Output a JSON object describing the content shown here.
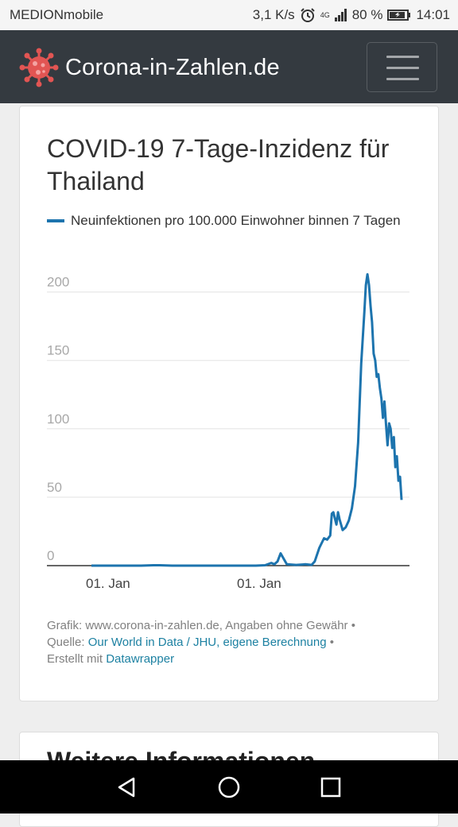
{
  "status_bar": {
    "carrier": "MEDIONmobile",
    "speed": "3,1 K/s",
    "network": "4G",
    "battery": "80 %",
    "time": "14:01"
  },
  "navbar": {
    "brand": "Corona-in-Zahlen.de",
    "logo_icon": "virus-icon",
    "menu_icon": "hamburger-icon"
  },
  "chart": {
    "title": "COVID-19 7-Tage-Inzidenz für Thailand",
    "legend_label": "Neuinfektionen pro 100.000 Einwohner binnen 7 Tagen",
    "line_color": "#1d74ae"
  },
  "chart_data": {
    "type": "line",
    "title": "COVID-19 7-Tage-Inzidenz für Thailand",
    "xlabel": "",
    "ylabel": "",
    "ylim": [
      0,
      200
    ],
    "yticks": [
      "200",
      "150",
      "100",
      "50",
      "0"
    ],
    "xticks": [
      "01. Jan",
      "01. Jan"
    ],
    "grid": true,
    "legend": "top",
    "series": [
      {
        "name": "Neuinfektionen pro 100.000 Einwohner binnen 7 Tagen",
        "points": [
          [
            0.0,
            0
          ],
          [
            0.16,
            0
          ],
          [
            0.2,
            0.3
          ],
          [
            0.22,
            0.3
          ],
          [
            0.26,
            0
          ],
          [
            0.4,
            0
          ],
          [
            0.48,
            0
          ],
          [
            0.53,
            0
          ],
          [
            0.56,
            0.3
          ],
          [
            0.58,
            2
          ],
          [
            0.59,
            1
          ],
          [
            0.6,
            3
          ],
          [
            0.61,
            9
          ],
          [
            0.62,
            5
          ],
          [
            0.63,
            1
          ],
          [
            0.66,
            0.5
          ],
          [
            0.69,
            1
          ],
          [
            0.71,
            0.5
          ],
          [
            0.72,
            3
          ],
          [
            0.735,
            13
          ],
          [
            0.75,
            20
          ],
          [
            0.76,
            19
          ],
          [
            0.77,
            22
          ],
          [
            0.775,
            38
          ],
          [
            0.78,
            39
          ],
          [
            0.79,
            30
          ],
          [
            0.795,
            39
          ],
          [
            0.8,
            34
          ],
          [
            0.81,
            26
          ],
          [
            0.82,
            28
          ],
          [
            0.83,
            33
          ],
          [
            0.84,
            42
          ],
          [
            0.85,
            58
          ],
          [
            0.86,
            90
          ],
          [
            0.87,
            148
          ],
          [
            0.88,
            185
          ],
          [
            0.885,
            205
          ],
          [
            0.89,
            213
          ],
          [
            0.895,
            205
          ],
          [
            0.9,
            190
          ],
          [
            0.905,
            178
          ],
          [
            0.91,
            155
          ],
          [
            0.915,
            150
          ],
          [
            0.92,
            138
          ],
          [
            0.925,
            140
          ],
          [
            0.93,
            130
          ],
          [
            0.935,
            122
          ],
          [
            0.94,
            108
          ],
          [
            0.945,
            120
          ],
          [
            0.95,
            103
          ],
          [
            0.955,
            88
          ],
          [
            0.96,
            104
          ],
          [
            0.965,
            100
          ],
          [
            0.97,
            86
          ],
          [
            0.975,
            94
          ],
          [
            0.98,
            72
          ],
          [
            0.985,
            80
          ],
          [
            0.99,
            62
          ],
          [
            0.995,
            65
          ],
          [
            1.0,
            48
          ]
        ]
      }
    ]
  },
  "footer": {
    "credit": "Grafik: www.corona-in-zahlen.de, Angaben ohne Gewähr •",
    "source_prefix": "Quelle: ",
    "source_link": "Our World in Data / JHU, eigene Berechnung",
    "source_suffix": " •",
    "made_prefix": "Erstellt mit ",
    "made_link": "Datawrapper"
  },
  "next_card": {
    "heading": "Weitere Informationen"
  },
  "android_nav": {
    "back": "back-icon",
    "home": "home-icon",
    "recents": "recents-icon"
  }
}
